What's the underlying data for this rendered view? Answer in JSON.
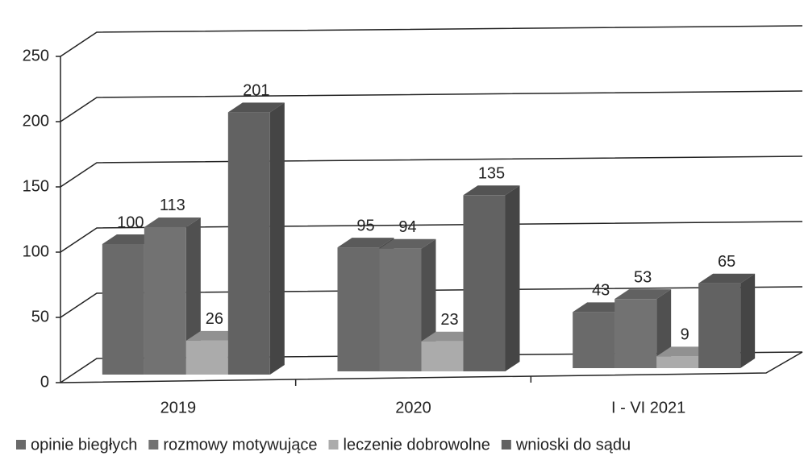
{
  "chart_data": {
    "type": "bar3d",
    "categories": [
      "2019",
      "2020",
      "I - VI 2021"
    ],
    "series": [
      {
        "name": "opinie biegłych",
        "color": "#6a6a6a",
        "values": [
          100,
          95,
          43
        ]
      },
      {
        "name": "rozmowy motywujące",
        "color": "#727272",
        "values": [
          113,
          94,
          53
        ]
      },
      {
        "name": "leczenie dobrowolne",
        "color": "#ababab",
        "values": [
          26,
          23,
          9
        ]
      },
      {
        "name": "wnioski do sądu",
        "color": "#626262",
        "values": [
          201,
          135,
          65
        ]
      }
    ],
    "ylim": [
      0,
      250
    ],
    "yticks": [
      0,
      50,
      100,
      150,
      200,
      250
    ],
    "grid": true,
    "legend": "bottom"
  }
}
